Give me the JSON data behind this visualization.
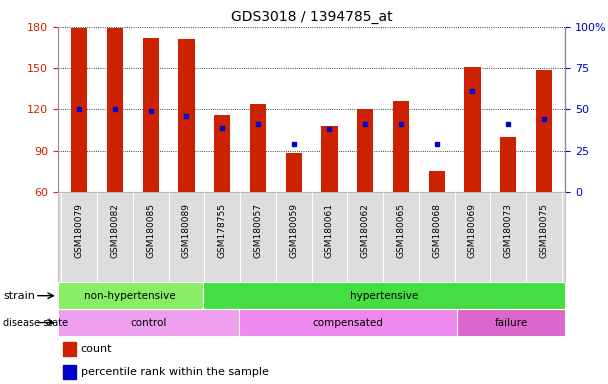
{
  "title": "GDS3018 / 1394785_at",
  "samples": [
    "GSM180079",
    "GSM180082",
    "GSM180085",
    "GSM180089",
    "GSM178755",
    "GSM180057",
    "GSM180059",
    "GSM180061",
    "GSM180062",
    "GSM180065",
    "GSM180068",
    "GSM180069",
    "GSM180073",
    "GSM180075"
  ],
  "counts": [
    179,
    179,
    172,
    171,
    116,
    124,
    88,
    108,
    120,
    126,
    75,
    151,
    100,
    149
  ],
  "percentiles": [
    50,
    50,
    49,
    46,
    39,
    41,
    29,
    38,
    41,
    41,
    29,
    61,
    41,
    44
  ],
  "ylim_left": [
    60,
    180
  ],
  "ylim_right": [
    0,
    100
  ],
  "yticks_left": [
    60,
    90,
    120,
    150,
    180
  ],
  "yticks_right": [
    0,
    25,
    50,
    75,
    100
  ],
  "bar_color": "#cc2200",
  "dot_color": "#0000cc",
  "bar_width": 0.45,
  "strain_groups": [
    {
      "label": "non-hypertensive",
      "start": 0,
      "end": 4,
      "color": "#88ee66"
    },
    {
      "label": "hypertensive",
      "start": 4,
      "end": 14,
      "color": "#44dd44"
    }
  ],
  "disease_groups": [
    {
      "label": "control",
      "start": 0,
      "end": 5,
      "color": "#eea0ee"
    },
    {
      "label": "compensated",
      "start": 5,
      "end": 11,
      "color": "#ee88ee"
    },
    {
      "label": "failure",
      "start": 11,
      "end": 14,
      "color": "#dd66cc"
    }
  ],
  "legend_count_label": "count",
  "legend_pct_label": "percentile rank within the sample",
  "tick_label_color_left": "#cc2200",
  "tick_label_color_right": "#0000cc"
}
